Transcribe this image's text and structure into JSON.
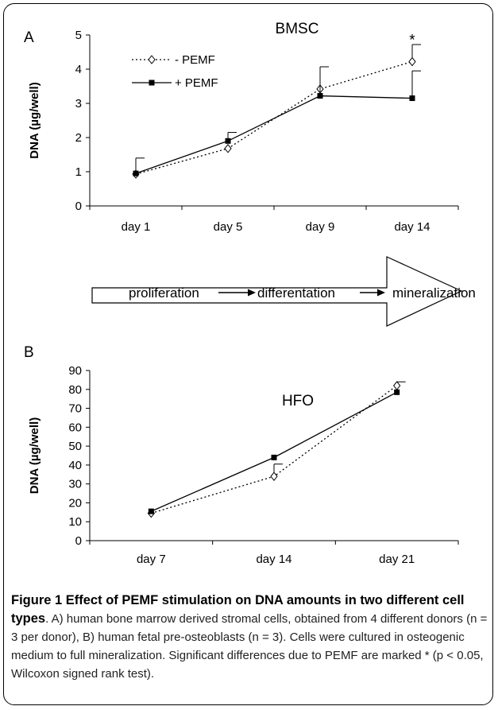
{
  "panel_a_letter": "A",
  "panel_b_letter": "B",
  "flow": {
    "step1": "proliferation",
    "step2": "differentation",
    "step3": "mineralization"
  },
  "caption": {
    "title": "Figure 1 Effect of PEMF stimulation on DNA amounts in two different cell types",
    "text": ". A) human bone marrow derived stromal cells, obtained from 4 different donors (n = 3 per donor), B) human fetal pre-osteoblasts (n = 3). Cells were cultured in osteogenic medium to full mineralization. Significant differences due to PEMF are marked * (p < 0.05, Wilcoxon signed rank test)."
  },
  "chart_data": [
    {
      "type": "line",
      "title": "BMSC",
      "xlabel": "",
      "ylabel": "DNA (µg/well)",
      "categories": [
        "day 1",
        "day 5",
        "day 9",
        "day 14"
      ],
      "ylim": [
        0,
        5
      ],
      "yticks": [
        0,
        1,
        2,
        3,
        4,
        5
      ],
      "legend_position": "top-left",
      "series": [
        {
          "name": "- PEMF",
          "values": [
            0.93,
            1.68,
            3.42,
            4.22
          ],
          "error": [
            0.0,
            0.0,
            0.0,
            0.5
          ],
          "style": "dotted",
          "marker": "open-diamond",
          "color": "#000000"
        },
        {
          "name": "+ PEMF",
          "values": [
            0.95,
            1.9,
            3.22,
            3.15
          ],
          "error": [
            0.45,
            0.25,
            0.85,
            0.8
          ],
          "style": "solid",
          "marker": "filled-square",
          "color": "#000000"
        }
      ],
      "annotations": [
        {
          "text": "*",
          "category_index": 3,
          "y": 4.9
        }
      ]
    },
    {
      "type": "line",
      "title": "HFO",
      "xlabel": "",
      "ylabel": "DNA (µg/well)",
      "categories": [
        "day 7",
        "day 14",
        "day 21"
      ],
      "ylim": [
        0,
        90
      ],
      "yticks": [
        0,
        10,
        20,
        30,
        40,
        50,
        60,
        70,
        80,
        90
      ],
      "series": [
        {
          "name": "- PEMF",
          "values": [
            14.5,
            34,
            82
          ],
          "error": [
            0,
            6.5,
            2
          ],
          "style": "dotted",
          "marker": "open-diamond",
          "color": "#000000"
        },
        {
          "name": "+ PEMF",
          "values": [
            15.5,
            44,
            78.5
          ],
          "error": [
            0,
            0,
            0
          ],
          "style": "solid",
          "marker": "filled-square",
          "color": "#000000"
        }
      ]
    }
  ]
}
